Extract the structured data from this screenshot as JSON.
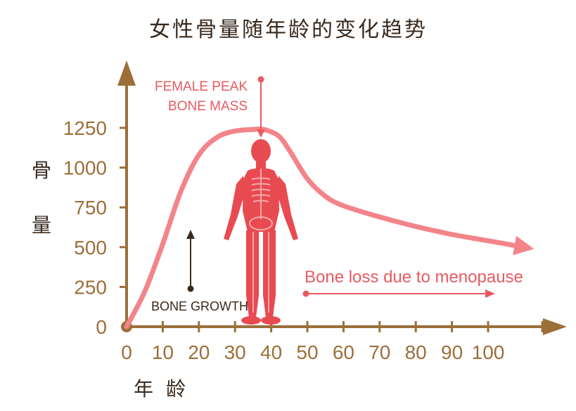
{
  "chart_data": {
    "type": "line",
    "title": "女性骨量随年龄的变化趋势",
    "ylabel": "骨量",
    "xlabel": "年龄",
    "x_ticks": [
      0,
      10,
      20,
      30,
      40,
      50,
      60,
      70,
      80,
      90,
      100
    ],
    "y_ticks": [
      0,
      250,
      500,
      750,
      1000,
      1250
    ],
    "xlim": [
      0,
      112
    ],
    "ylim": [
      0,
      1550
    ],
    "series": [
      {
        "name": "",
        "x": [
          0,
          5,
          10,
          15,
          20,
          25,
          30,
          35,
          38,
          42,
          45,
          50,
          55,
          60,
          70,
          80,
          90,
          100,
          110
        ],
        "y": [
          0,
          220,
          520,
          850,
          1080,
          1190,
          1230,
          1240,
          1240,
          1200,
          1110,
          930,
          820,
          760,
          690,
          630,
          580,
          540,
          500
        ]
      }
    ],
    "annotations": {
      "peak_line1": "FEMALE PEAK",
      "peak_line2": "BONE MASS",
      "growth": "BONE GROWTH",
      "loss": "Bone loss due to menopause"
    },
    "colors": {
      "axis": "#9c6f3a",
      "curve": "#f3848a",
      "figure": "#e84a52",
      "annotation": "#e85a62"
    }
  }
}
